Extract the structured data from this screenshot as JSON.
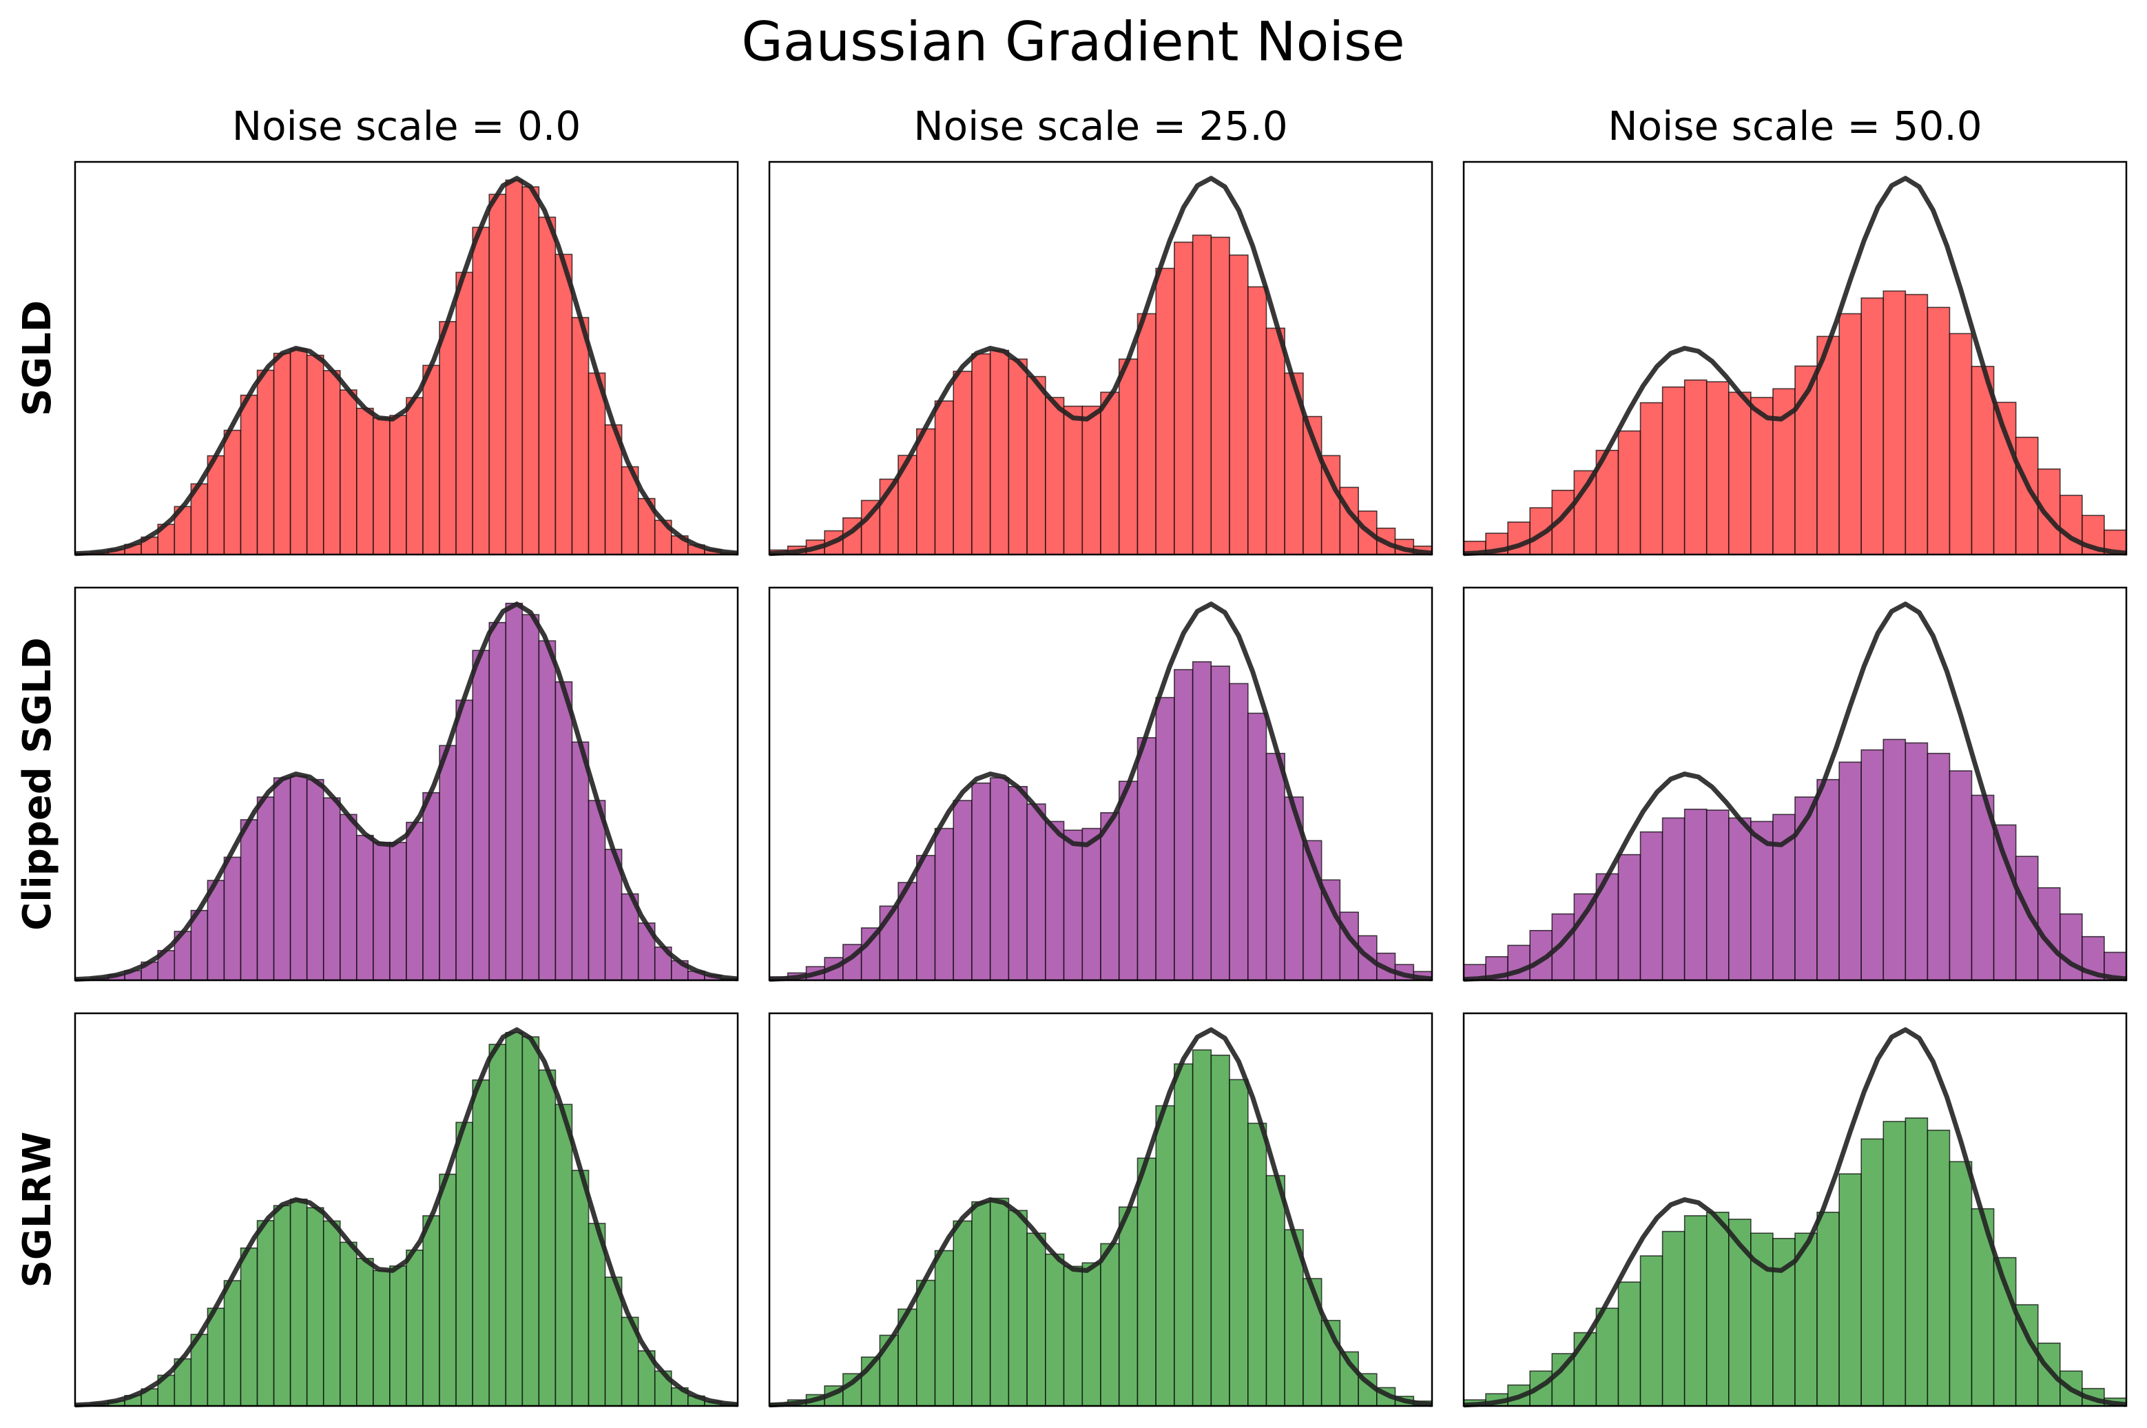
{
  "title": "Gaussian Gradient Noise",
  "column_titles": [
    "Noise scale = 0.0",
    "Noise scale = 25.0",
    "Noise scale = 50.0"
  ],
  "row_labels": [
    "SGLD",
    "Clipped SGLD",
    "SGLRW"
  ],
  "curve": {
    "color": "#222222",
    "x": [
      -6,
      -5.75,
      -5.5,
      -5.25,
      -5,
      -4.75,
      -4.5,
      -4.25,
      -4,
      -3.75,
      -3.5,
      -3.25,
      -3,
      -2.75,
      -2.5,
      -2.25,
      -2,
      -1.75,
      -1.5,
      -1.25,
      -1,
      -0.75,
      -0.5,
      -0.25,
      0,
      0.25,
      0.5,
      0.75,
      1,
      1.25,
      1.5,
      1.75,
      2,
      2.25,
      2.5,
      2.75,
      3,
      3.25,
      3.5,
      3.75,
      4,
      4.25,
      4.5,
      4.75,
      5,
      5.25,
      5.5,
      5.75,
      6
    ],
    "values": [
      0.0005,
      0.0009,
      0.0017,
      0.003,
      0.0052,
      0.0085,
      0.0134,
      0.0202,
      0.0293,
      0.0405,
      0.0537,
      0.0682,
      0.083,
      0.0967,
      0.1078,
      0.1153,
      0.1182,
      0.1165,
      0.1107,
      0.1021,
      0.0924,
      0.0838,
      0.0783,
      0.0776,
      0.083,
      0.0945,
      0.1119,
      0.1335,
      0.1572,
      0.1799,
      0.1989,
      0.2114,
      0.2156,
      0.2107,
      0.1973,
      0.177,
      0.152,
      0.125,
      0.0985,
      0.0743,
      0.0536,
      0.0371,
      0.0246,
      0.0156,
      0.0094,
      0.0055,
      0.003,
      0.0016,
      0.0008
    ]
  },
  "chart_data": [
    {
      "type": "histogram",
      "color": "#ff6666",
      "xlim": [
        -6,
        6
      ],
      "ylim": [
        0,
        0.225
      ],
      "bins": [
        -6,
        -5.7,
        -5.4,
        -5.1,
        -4.8,
        -4.5,
        -4.2,
        -3.9,
        -3.6,
        -3.3,
        -3,
        -2.7,
        -2.4,
        -2.1,
        -1.8,
        -1.5,
        -1.2,
        -0.9,
        -0.6,
        -0.3,
        0,
        0.3,
        0.6,
        0.9,
        1.2,
        1.5,
        1.8,
        2.1,
        2.4,
        2.7,
        3,
        3.3,
        3.6,
        3.9,
        4.2,
        4.5,
        4.8,
        5.1,
        5.4,
        5.7,
        6
      ],
      "values": [
        0.0007,
        0.0015,
        0.003,
        0.0058,
        0.01,
        0.0173,
        0.0275,
        0.0405,
        0.0566,
        0.0712,
        0.0913,
        0.1056,
        0.1153,
        0.1179,
        0.1142,
        0.1054,
        0.0943,
        0.0838,
        0.0782,
        0.0797,
        0.0899,
        0.1084,
        0.1335,
        0.1617,
        0.1875,
        0.2064,
        0.2146,
        0.2107,
        0.1933,
        0.172,
        0.1358,
        0.104,
        0.0743,
        0.0503,
        0.0321,
        0.0196,
        0.0107,
        0.0055,
        0.0027,
        0.0013
      ]
    },
    {
      "type": "histogram",
      "color": "#ff6666",
      "xlim": [
        -6,
        6
      ],
      "ylim": [
        0,
        0.225
      ],
      "bins": [
        -6,
        -5.667,
        -5.333,
        -5,
        -4.667,
        -4.333,
        -4,
        -3.667,
        -3.333,
        -3,
        -2.667,
        -2.333,
        -2,
        -1.667,
        -1.333,
        -1,
        -0.667,
        -0.333,
        0,
        0.333,
        0.667,
        1,
        1.333,
        1.667,
        2,
        2.333,
        2.667,
        3,
        3.333,
        3.667,
        4,
        4.333,
        4.667,
        5,
        5.333,
        5.667,
        6
      ],
      "values": [
        0.0026,
        0.0048,
        0.0083,
        0.0136,
        0.021,
        0.031,
        0.0432,
        0.0568,
        0.072,
        0.088,
        0.105,
        0.115,
        0.117,
        0.112,
        0.102,
        0.09,
        0.085,
        0.085,
        0.093,
        0.112,
        0.138,
        0.164,
        0.179,
        0.183,
        0.1818,
        0.1716,
        0.1534,
        0.1297,
        0.104,
        0.0791,
        0.0567,
        0.0385,
        0.0249,
        0.0151,
        0.0087,
        0.0048
      ]
    },
    {
      "type": "histogram",
      "color": "#ff6666",
      "xlim": [
        -6,
        6
      ],
      "ylim": [
        0,
        0.225
      ],
      "bins": [
        -6,
        -5.6,
        -5.2,
        -4.8,
        -4.4,
        -4,
        -3.6,
        -3.2,
        -2.8,
        -2.4,
        -2,
        -1.6,
        -1.2,
        -0.8,
        -0.4,
        0,
        0.4,
        0.8,
        1.2,
        1.6,
        2,
        2.4,
        2.8,
        3.2,
        3.6,
        4,
        4.4,
        4.8,
        5.2,
        5.6,
        6
      ],
      "values": [
        0.0076,
        0.0122,
        0.0186,
        0.0268,
        0.0368,
        0.048,
        0.0597,
        0.0708,
        0.087,
        0.096,
        0.1,
        0.099,
        0.093,
        0.09,
        0.095,
        0.108,
        0.125,
        0.138,
        0.147,
        0.151,
        0.149,
        0.1416,
        0.1266,
        0.1078,
        0.0872,
        0.0672,
        0.049,
        0.0339,
        0.0224,
        0.014
      ]
    },
    {
      "type": "histogram",
      "color": "#b366b3",
      "xlim": [
        -6,
        6
      ],
      "ylim": [
        0,
        0.225
      ],
      "bins": [
        -6,
        -5.7,
        -5.4,
        -5.1,
        -4.8,
        -4.5,
        -4.2,
        -3.9,
        -3.6,
        -3.3,
        -3,
        -2.7,
        -2.4,
        -2.1,
        -1.8,
        -1.5,
        -1.2,
        -0.9,
        -0.6,
        -0.3,
        0,
        0.3,
        0.6,
        0.9,
        1.2,
        1.5,
        1.8,
        2.1,
        2.4,
        2.7,
        3,
        3.3,
        3.6,
        3.9,
        4.2,
        4.5,
        4.8,
        5.1,
        5.4,
        5.7,
        6
      ],
      "values": [
        0.0006,
        0.0014,
        0.0032,
        0.0055,
        0.0104,
        0.017,
        0.028,
        0.04,
        0.0572,
        0.0705,
        0.092,
        0.105,
        0.116,
        0.117,
        0.115,
        0.1045,
        0.095,
        0.083,
        0.079,
        0.079,
        0.0905,
        0.1075,
        0.1345,
        0.1605,
        0.189,
        0.205,
        0.216,
        0.2095,
        0.1945,
        0.171,
        0.1365,
        0.103,
        0.075,
        0.0495,
        0.0328,
        0.019,
        0.0112,
        0.0052,
        0.0029,
        0.0011
      ]
    },
    {
      "type": "histogram",
      "color": "#b366b3",
      "xlim": [
        -6,
        6
      ],
      "ylim": [
        0,
        0.225
      ],
      "bins": [
        -6,
        -5.667,
        -5.333,
        -5,
        -4.667,
        -4.333,
        -4,
        -3.667,
        -3.333,
        -3,
        -2.667,
        -2.333,
        -2,
        -1.667,
        -1.333,
        -1,
        -0.667,
        -0.333,
        0,
        0.333,
        0.667,
        1,
        1.333,
        1.667,
        2,
        2.333,
        2.667,
        3,
        3.333,
        3.667,
        4,
        4.333,
        4.667,
        5,
        5.333,
        5.667,
        6
      ],
      "values": [
        0.002,
        0.0042,
        0.0078,
        0.013,
        0.0205,
        0.03,
        0.0425,
        0.056,
        0.0715,
        0.087,
        0.103,
        0.113,
        0.116,
        0.111,
        0.101,
        0.091,
        0.086,
        0.087,
        0.096,
        0.114,
        0.139,
        0.162,
        0.178,
        0.1825,
        0.18,
        0.17,
        0.153,
        0.13,
        0.105,
        0.08,
        0.0575,
        0.039,
        0.0255,
        0.0155,
        0.009,
        0.005
      ]
    },
    {
      "type": "histogram",
      "color": "#b366b3",
      "xlim": [
        -6,
        6
      ],
      "ylim": [
        0,
        0.225
      ],
      "bins": [
        -6,
        -5.6,
        -5.2,
        -4.8,
        -4.4,
        -4,
        -3.6,
        -3.2,
        -2.8,
        -2.4,
        -2,
        -1.6,
        -1.2,
        -0.8,
        -0.4,
        0,
        0.4,
        0.8,
        1.2,
        1.6,
        2,
        2.4,
        2.8,
        3.2,
        3.6,
        4,
        4.4,
        4.8,
        5.2,
        5.6,
        6
      ],
      "values": [
        0.009,
        0.0135,
        0.02,
        0.0285,
        0.038,
        0.0495,
        0.061,
        0.072,
        0.085,
        0.093,
        0.098,
        0.0975,
        0.093,
        0.091,
        0.095,
        0.105,
        0.115,
        0.125,
        0.132,
        0.138,
        0.136,
        0.13,
        0.12,
        0.106,
        0.089,
        0.071,
        0.053,
        0.038,
        0.025,
        0.016
      ]
    },
    {
      "type": "histogram",
      "color": "#66b366",
      "xlim": [
        -6,
        6
      ],
      "ylim": [
        0,
        0.225
      ],
      "bins": [
        -6,
        -5.7,
        -5.4,
        -5.1,
        -4.8,
        -4.5,
        -4.2,
        -3.9,
        -3.6,
        -3.3,
        -3,
        -2.7,
        -2.4,
        -2.1,
        -1.8,
        -1.5,
        -1.2,
        -0.9,
        -0.6,
        -0.3,
        0,
        0.3,
        0.6,
        0.9,
        1.2,
        1.5,
        1.8,
        2.1,
        2.4,
        2.7,
        3,
        3.3,
        3.6,
        3.9,
        4.2,
        4.5,
        4.8,
        5.1,
        5.4,
        5.7,
        6
      ],
      "values": [
        0.0008,
        0.0016,
        0.0028,
        0.006,
        0.0098,
        0.0176,
        0.027,
        0.041,
        0.056,
        0.0718,
        0.0905,
        0.1062,
        0.1148,
        0.1185,
        0.1136,
        0.106,
        0.0938,
        0.0845,
        0.0776,
        0.0802,
        0.0893,
        0.109,
        0.1328,
        0.1625,
        0.1868,
        0.2072,
        0.214,
        0.2115,
        0.1925,
        0.1728,
        0.135,
        0.1046,
        0.0738,
        0.0508,
        0.0316,
        0.02,
        0.0104,
        0.0057,
        0.0025,
        0.0014
      ]
    },
    {
      "type": "histogram",
      "color": "#66b366",
      "xlim": [
        -6,
        6
      ],
      "ylim": [
        0,
        0.225
      ],
      "bins": [
        -6,
        -5.667,
        -5.333,
        -5,
        -4.667,
        -4.333,
        -4,
        -3.667,
        -3.333,
        -3,
        -2.667,
        -2.333,
        -2,
        -1.667,
        -1.333,
        -1,
        -0.667,
        -0.333,
        0,
        0.333,
        0.667,
        1,
        1.333,
        1.667,
        2,
        2.333,
        2.667,
        3,
        3.333,
        3.667,
        4,
        4.333,
        4.667,
        5,
        5.333,
        5.667,
        6
      ],
      "values": [
        0.0015,
        0.0035,
        0.0065,
        0.0115,
        0.0185,
        0.028,
        0.0405,
        0.0555,
        0.072,
        0.089,
        0.106,
        0.117,
        0.119,
        0.112,
        0.099,
        0.087,
        0.08,
        0.082,
        0.093,
        0.114,
        0.142,
        0.172,
        0.196,
        0.204,
        0.201,
        0.187,
        0.162,
        0.132,
        0.101,
        0.073,
        0.049,
        0.031,
        0.0185,
        0.0105,
        0.0055,
        0.0028
      ]
    },
    {
      "type": "histogram",
      "color": "#66b366",
      "xlim": [
        -6,
        6
      ],
      "ylim": [
        0,
        0.225
      ],
      "bins": [
        -6,
        -5.6,
        -5.2,
        -4.8,
        -4.4,
        -4,
        -3.6,
        -3.2,
        -2.8,
        -2.4,
        -2,
        -1.6,
        -1.2,
        -0.8,
        -0.4,
        0,
        0.4,
        0.8,
        1.2,
        1.6,
        2,
        2.4,
        2.8,
        3.2,
        3.6,
        4,
        4.4,
        4.8,
        5.2,
        5.6,
        6
      ],
      "values": [
        0.0035,
        0.007,
        0.012,
        0.02,
        0.03,
        0.042,
        0.056,
        0.071,
        0.086,
        0.1,
        0.109,
        0.111,
        0.107,
        0.099,
        0.096,
        0.099,
        0.111,
        0.133,
        0.153,
        0.163,
        0.165,
        0.158,
        0.14,
        0.113,
        0.085,
        0.058,
        0.036,
        0.02,
        0.01,
        0.0045
      ]
    }
  ]
}
